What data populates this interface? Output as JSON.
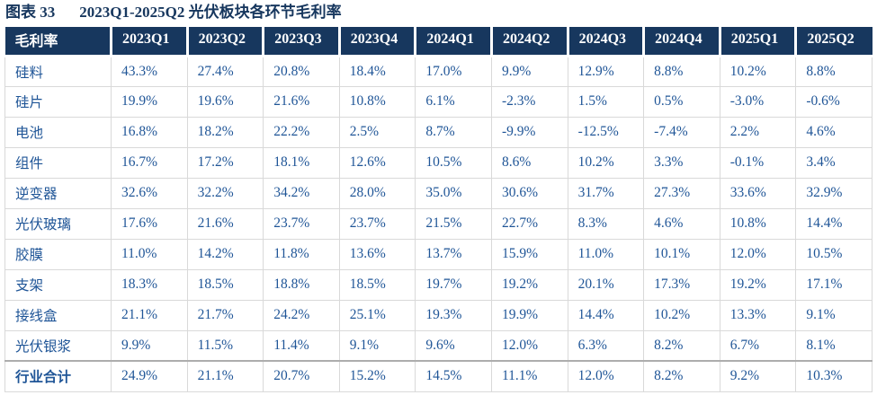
{
  "title": {
    "label": "图表 33",
    "text": "2023Q1-2025Q2 光伏板块各环节毛利率"
  },
  "colors": {
    "header_bg": "#17375E",
    "title_text": "#17375E",
    "value_text": "#1F5597",
    "grid_line": "#D9D9D9",
    "total_divider": "#ADADAD"
  },
  "chart_data": {
    "type": "table",
    "figure_label": "图表 33",
    "title": "2023Q1-2025Q2 光伏板块各环节毛利率",
    "columns": [
      "毛利率",
      "2023Q1",
      "2023Q2",
      "2023Q3",
      "2023Q4",
      "2024Q1",
      "2024Q2",
      "2024Q3",
      "2024Q4",
      "2025Q1",
      "2025Q2"
    ],
    "rows": [
      {
        "label": "硅料",
        "bold": false,
        "values": [
          "43.3%",
          "27.4%",
          "20.8%",
          "18.4%",
          "17.0%",
          "9.9%",
          "12.9%",
          "8.8%",
          "10.2%",
          "8.8%"
        ]
      },
      {
        "label": "硅片",
        "bold": false,
        "values": [
          "19.9%",
          "19.6%",
          "21.6%",
          "10.8%",
          "6.1%",
          "-2.3%",
          "1.5%",
          "0.5%",
          "-3.0%",
          "-0.6%"
        ]
      },
      {
        "label": "电池",
        "bold": false,
        "values": [
          "16.8%",
          "18.2%",
          "22.2%",
          "2.5%",
          "8.7%",
          "-9.9%",
          "-12.5%",
          "-7.4%",
          "2.2%",
          "4.6%"
        ]
      },
      {
        "label": "组件",
        "bold": false,
        "values": [
          "16.7%",
          "17.2%",
          "18.1%",
          "12.6%",
          "10.5%",
          "8.6%",
          "10.2%",
          "3.3%",
          "-0.1%",
          "3.4%"
        ]
      },
      {
        "label": "逆变器",
        "bold": false,
        "values": [
          "32.6%",
          "32.2%",
          "34.2%",
          "28.0%",
          "35.0%",
          "30.6%",
          "31.7%",
          "27.3%",
          "33.6%",
          "32.9%"
        ]
      },
      {
        "label": "光伏玻璃",
        "bold": false,
        "values": [
          "17.6%",
          "21.6%",
          "23.7%",
          "23.7%",
          "21.5%",
          "22.7%",
          "8.3%",
          "4.6%",
          "10.8%",
          "14.4%"
        ]
      },
      {
        "label": "胶膜",
        "bold": false,
        "values": [
          "11.0%",
          "14.2%",
          "11.8%",
          "13.6%",
          "13.7%",
          "15.9%",
          "11.0%",
          "10.1%",
          "12.0%",
          "10.5%"
        ]
      },
      {
        "label": "支架",
        "bold": false,
        "values": [
          "18.3%",
          "18.5%",
          "18.8%",
          "18.5%",
          "19.7%",
          "19.2%",
          "20.1%",
          "17.3%",
          "19.2%",
          "17.1%"
        ]
      },
      {
        "label": "接线盒",
        "bold": false,
        "values": [
          "21.1%",
          "21.7%",
          "24.2%",
          "25.1%",
          "19.3%",
          "19.9%",
          "14.4%",
          "10.2%",
          "13.3%",
          "9.1%"
        ]
      },
      {
        "label": "光伏银浆",
        "bold": false,
        "values": [
          "9.9%",
          "11.5%",
          "11.4%",
          "9.1%",
          "9.6%",
          "12.0%",
          "6.3%",
          "8.2%",
          "6.7%",
          "8.1%"
        ]
      },
      {
        "label": "行业合计",
        "bold": true,
        "values": [
          "24.9%",
          "21.1%",
          "20.7%",
          "15.2%",
          "14.5%",
          "11.1%",
          "12.0%",
          "8.2%",
          "9.2%",
          "10.3%"
        ]
      }
    ]
  }
}
